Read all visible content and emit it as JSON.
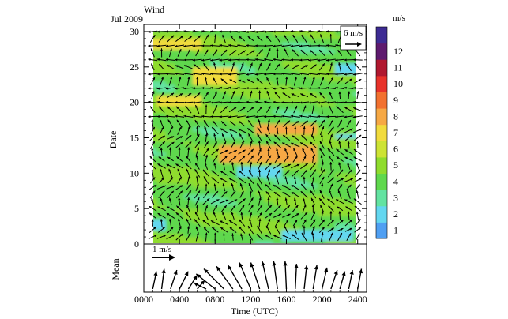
{
  "figure": {
    "month_label": "Jul 2009",
    "panel_title": "Wind"
  },
  "chart_data": [
    {
      "type": "heatmap",
      "subtype": "wind vector field over wind-speed shading",
      "title": "Wind",
      "corner_label": "Jul 2009",
      "xlabel": "",
      "ylabel": "Date",
      "xlim": [
        0,
        2500
      ],
      "ylim": [
        0,
        31
      ],
      "y_ticks": [
        0,
        5,
        10,
        15,
        20,
        25,
        30
      ],
      "reference_vector": "6 m/s",
      "colorbar": {
        "unit": "m/s",
        "range": [
          1,
          12
        ],
        "ticks": [
          1,
          2,
          3,
          4,
          5,
          6,
          7,
          8,
          9,
          10,
          11,
          12
        ],
        "colors": [
          "#4f9ff2",
          "#63d7f0",
          "#63e3a1",
          "#5fd84d",
          "#8fdc2d",
          "#cde334",
          "#f1db3d",
          "#f6a844",
          "#f2712f",
          "#e8322a",
          "#b0182f",
          "#5e1a6e",
          "#3d2b93"
        ]
      },
      "wind_speed_features": [
        {
          "dates": [
            16,
            17
          ],
          "hours": "1300-1900 UTC",
          "speed_ms": 8
        },
        {
          "dates": [
            12,
            14
          ],
          "hours": "0900-1900 UTC",
          "speed_ms": 8
        },
        {
          "dates": [
            23,
            25
          ],
          "hours": "0600-1000 UTC",
          "speed_ms": 7
        },
        {
          "dates": [
            28,
            29
          ],
          "hours": "0000-0600 UTC",
          "speed_ms": 7
        },
        {
          "dates": [
            20,
            21
          ],
          "hours": "0200-0600 UTC",
          "speed_ms": 7
        },
        {
          "dates": [
            1,
            2
          ],
          "hours": "1600-2300 UTC",
          "speed_ms": 1.5
        },
        {
          "dates": [
            10,
            11
          ],
          "hours": "1100-1500 UTC",
          "speed_ms": 2
        }
      ]
    },
    {
      "type": "scatter",
      "subtype": "mean diurnal wind vectors",
      "ylabel": "Mean",
      "xlabel": "Time (UTC)",
      "x_ticks": [
        "0000",
        "0400",
        "0800",
        "1200",
        "1600",
        "2000",
        "2400"
      ],
      "xlim": [
        0,
        2500
      ],
      "reference_vector": "1 m/s",
      "vectors": [
        {
          "time": 100,
          "u": 0.15,
          "v": 0.7
        },
        {
          "time": 200,
          "u": 0.1,
          "v": 0.8
        },
        {
          "time": 300,
          "u": 0.25,
          "v": 0.75
        },
        {
          "time": 400,
          "u": 0.35,
          "v": 0.7
        },
        {
          "time": 500,
          "u": 0.35,
          "v": 0.55
        },
        {
          "time": 600,
          "u": 0.3,
          "v": 0.35
        },
        {
          "time": 700,
          "u": -0.5,
          "v": 0.25
        },
        {
          "time": 800,
          "u": -0.75,
          "v": 0.6
        },
        {
          "time": 900,
          "u": -0.8,
          "v": 0.8
        },
        {
          "time": 1000,
          "u": -0.65,
          "v": 0.9
        },
        {
          "time": 1100,
          "u": -0.55,
          "v": 0.95
        },
        {
          "time": 1200,
          "u": -0.45,
          "v": 1.05
        },
        {
          "time": 1300,
          "u": -0.35,
          "v": 1.05
        },
        {
          "time": 1400,
          "u": -0.25,
          "v": 1.1
        },
        {
          "time": 1500,
          "u": -0.15,
          "v": 1.1
        },
        {
          "time": 1600,
          "u": -0.05,
          "v": 1.1
        },
        {
          "time": 1700,
          "u": 0.05,
          "v": 1.0
        },
        {
          "time": 1800,
          "u": 0.1,
          "v": 0.95
        },
        {
          "time": 1900,
          "u": 0.15,
          "v": 0.95
        },
        {
          "time": 2000,
          "u": 0.2,
          "v": 0.85
        },
        {
          "time": 2100,
          "u": 0.25,
          "v": 0.75
        },
        {
          "time": 2200,
          "u": 0.2,
          "v": 0.7
        },
        {
          "time": 2300,
          "u": 0.15,
          "v": 0.75
        },
        {
          "time": 2400,
          "u": 0.15,
          "v": 0.8
        }
      ]
    }
  ]
}
